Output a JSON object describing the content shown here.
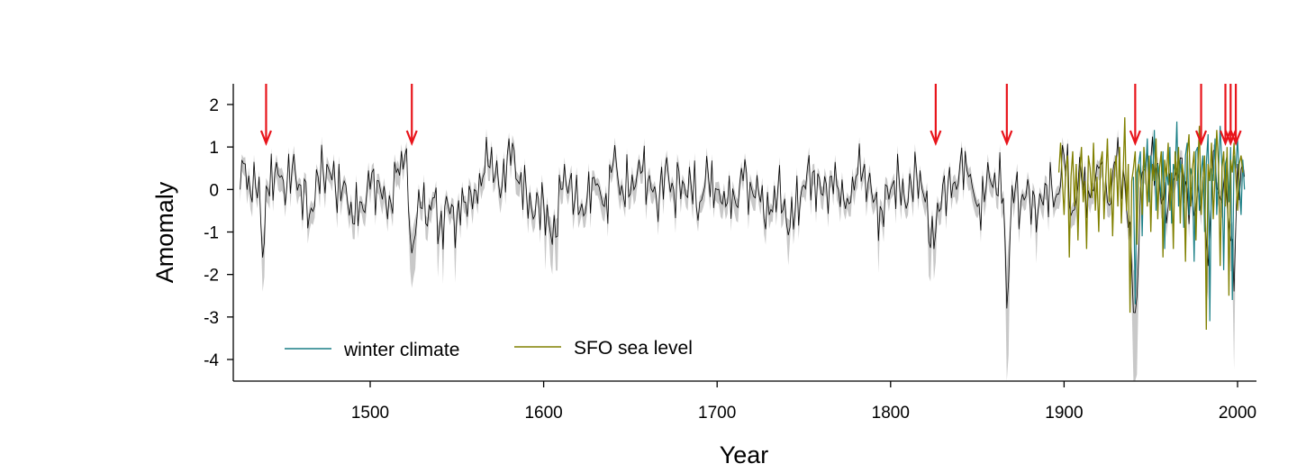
{
  "chart_data": {
    "type": "line",
    "title": "",
    "xlabel": "Year",
    "ylabel": "Amomaly",
    "xlim": [
      1425,
      2005
    ],
    "ylim": [
      -4.5,
      2.5
    ],
    "x_ticks": [
      1500,
      1600,
      1700,
      1800,
      1900,
      2000
    ],
    "y_ticks": [
      2,
      1,
      0,
      -1,
      -2,
      -3,
      -4
    ],
    "grid": false,
    "legend_position": "bottom-left",
    "legend": [
      {
        "label": "winter climate",
        "color": "#1a7f86"
      },
      {
        "label": "SFO sea level",
        "color": "#808000"
      }
    ],
    "reconstruction": {
      "color": "#000000",
      "band_color": "#c8c8c8",
      "x_start": 1425,
      "x_end": 2004,
      "anchors": [
        [
          1425,
          0.0
        ],
        [
          1428,
          0.6
        ],
        [
          1432,
          -0.3
        ],
        [
          1436,
          0.3
        ],
        [
          1438,
          -1.6
        ],
        [
          1441,
          0.0
        ],
        [
          1445,
          0.4
        ],
        [
          1450,
          0.2
        ],
        [
          1455,
          0.5
        ],
        [
          1460,
          0.1
        ],
        [
          1465,
          -0.6
        ],
        [
          1470,
          0.3
        ],
        [
          1475,
          0.6
        ],
        [
          1480,
          0.0
        ],
        [
          1485,
          0.2
        ],
        [
          1490,
          -0.8
        ],
        [
          1495,
          -0.3
        ],
        [
          1500,
          0.0
        ],
        [
          1505,
          0.2
        ],
        [
          1510,
          -0.7
        ],
        [
          1515,
          0.4
        ],
        [
          1520,
          0.8
        ],
        [
          1524,
          -1.5
        ],
        [
          1528,
          0.0
        ],
        [
          1532,
          -0.8
        ],
        [
          1536,
          -0.2
        ],
        [
          1540,
          -0.9
        ],
        [
          1545,
          -0.4
        ],
        [
          1550,
          -0.6
        ],
        [
          1555,
          -0.3
        ],
        [
          1560,
          0.0
        ],
        [
          1565,
          0.3
        ],
        [
          1570,
          1.0
        ],
        [
          1575,
          -0.2
        ],
        [
          1580,
          1.2
        ],
        [
          1585,
          0.2
        ],
        [
          1590,
          0.0
        ],
        [
          1595,
          -0.6
        ],
        [
          1600,
          -0.3
        ],
        [
          1605,
          -1.3
        ],
        [
          1610,
          0.0
        ],
        [
          1615,
          0.2
        ],
        [
          1620,
          -0.6
        ],
        [
          1625,
          -0.2
        ],
        [
          1630,
          0.1
        ],
        [
          1635,
          -0.4
        ],
        [
          1640,
          0.6
        ],
        [
          1645,
          0.1
        ],
        [
          1650,
          -0.1
        ],
        [
          1655,
          0.7
        ],
        [
          1660,
          0.2
        ],
        [
          1665,
          -0.2
        ],
        [
          1670,
          0.5
        ],
        [
          1675,
          0.0
        ],
        [
          1680,
          0.2
        ],
        [
          1685,
          0.1
        ],
        [
          1690,
          -0.3
        ],
        [
          1695,
          0.3
        ],
        [
          1700,
          0.0
        ],
        [
          1705,
          -0.4
        ],
        [
          1710,
          -0.2
        ],
        [
          1715,
          0.2
        ],
        [
          1720,
          0.0
        ],
        [
          1725,
          -0.3
        ],
        [
          1730,
          -0.6
        ],
        [
          1735,
          0.0
        ],
        [
          1740,
          -0.8
        ],
        [
          1745,
          -0.5
        ],
        [
          1750,
          0.1
        ],
        [
          1755,
          0.4
        ],
        [
          1760,
          -0.1
        ],
        [
          1765,
          0.3
        ],
        [
          1770,
          0.0
        ],
        [
          1775,
          -0.2
        ],
        [
          1780,
          0.3
        ],
        [
          1785,
          0.6
        ],
        [
          1790,
          -0.3
        ],
        [
          1795,
          -0.5
        ],
        [
          1800,
          0.0
        ],
        [
          1805,
          0.2
        ],
        [
          1810,
          -0.3
        ],
        [
          1815,
          0.4
        ],
        [
          1820,
          -0.3
        ],
        [
          1825,
          -1.4
        ],
        [
          1830,
          0.1
        ],
        [
          1835,
          -0.2
        ],
        [
          1840,
          0.6
        ],
        [
          1845,
          0.3
        ],
        [
          1850,
          -0.4
        ],
        [
          1855,
          0.0
        ],
        [
          1860,
          0.4
        ],
        [
          1865,
          -0.2
        ],
        [
          1867,
          -2.8
        ],
        [
          1870,
          0.1
        ],
        [
          1875,
          -0.3
        ],
        [
          1880,
          0.0
        ],
        [
          1885,
          -0.5
        ],
        [
          1890,
          0.1
        ],
        [
          1895,
          -0.2
        ],
        [
          1900,
          0.8
        ],
        [
          1905,
          -0.5
        ],
        [
          1910,
          0.3
        ],
        [
          1915,
          -0.2
        ],
        [
          1920,
          0.5
        ],
        [
          1925,
          -0.3
        ],
        [
          1930,
          0.6
        ],
        [
          1935,
          0.2
        ],
        [
          1941,
          -2.9
        ],
        [
          1945,
          0.4
        ],
        [
          1950,
          0.7
        ],
        [
          1955,
          0.1
        ],
        [
          1960,
          -0.4
        ],
        [
          1965,
          0.5
        ],
        [
          1970,
          0.2
        ],
        [
          1975,
          -0.6
        ],
        [
          1980,
          0.3
        ],
        [
          1983,
          -1.8
        ],
        [
          1986,
          0.9
        ],
        [
          1990,
          -0.2
        ],
        [
          1993,
          0.5
        ],
        [
          1996,
          -1.2
        ],
        [
          1998,
          -2.4
        ],
        [
          2000,
          0.6
        ],
        [
          2004,
          0.3
        ]
      ]
    },
    "sea_level": {
      "color": "#808000",
      "x_start": 1897,
      "x_end": 2003,
      "values": [
        0.4,
        1.1,
        0.2,
        -0.6,
        0.5,
        0.8,
        -1.6,
        0.3,
        0.9,
        -0.4,
        0.6,
        -1.2,
        0.4,
        1.0,
        -0.3,
        0.2,
        -1.4,
        0.8,
        0.5,
        -0.2,
        1.1,
        -0.5,
        0.3,
        -1.0,
        0.6,
        0.9,
        -0.7,
        0.2,
        1.2,
        -0.3,
        0.5,
        -1.1,
        0.4,
        0.8,
        -0.4,
        1.0,
        -0.8,
        0.3,
        1.7,
        -0.5,
        0.6,
        -2.9,
        0.2,
        0.5,
        0.9,
        -1.3,
        0.6,
        0.3,
        -0.6,
        1.0,
        0.4,
        -0.4,
        0.8,
        -1.0,
        0.6,
        0.2,
        1.2,
        -0.7,
        0.5,
        0.9,
        -1.6,
        0.7,
        0.3,
        1.1,
        -0.5,
        0.4,
        -1.4,
        0.9,
        0.2,
        1.0,
        -0.8,
        0.6,
        0.3,
        -1.7,
        0.8,
        1.3,
        -0.4,
        0.5,
        0.9,
        -1.2,
        0.4,
        1.5,
        -0.6,
        0.2,
        0.8,
        -3.3,
        0.6,
        0.2,
        1.1,
        -0.7,
        0.3,
        1.4,
        0.6,
        -1.8,
        0.5,
        0.9,
        -0.4,
        1.0,
        -2.5,
        0.7,
        0.4,
        1.1,
        0.3,
        -0.5,
        0.6,
        0.8,
        0.4
      ],
      "label": "SFO sea level"
    },
    "winter_climate": {
      "color": "#1a7f86",
      "x_start": 1940,
      "x_end": 2004,
      "values": [
        0.3,
        -2.7,
        0.4,
        0.6,
        0.9,
        -1.1,
        0.7,
        0.4,
        1.2,
        -0.3,
        0.8,
        0.2,
        1.4,
        -0.5,
        0.6,
        0.3,
        -0.2,
        0.9,
        -1.4,
        0.5,
        0.1,
        1.0,
        -0.8,
        0.6,
        0.4,
        1.6,
        -0.4,
        0.7,
        0.3,
        -0.9,
        0.8,
        1.1,
        -0.6,
        0.5,
        0.3,
        -1.7,
        0.9,
        1.0,
        -0.5,
        0.4,
        0.8,
        -1.0,
        0.6,
        1.3,
        -3.1,
        0.5,
        0.2,
        1.2,
        -0.6,
        0.4,
        1.5,
        0.5,
        -1.9,
        0.6,
        0.8,
        -0.3,
        1.0,
        -2.6,
        0.8,
        0.5,
        1.2,
        0.2,
        -0.6,
        0.7,
        0.0
      ],
      "label": "winter climate"
    },
    "events": [
      1440,
      1524,
      1826,
      1867,
      1941,
      1979,
      1993,
      1996,
      1999
    ],
    "event_color": "#e8141b"
  }
}
